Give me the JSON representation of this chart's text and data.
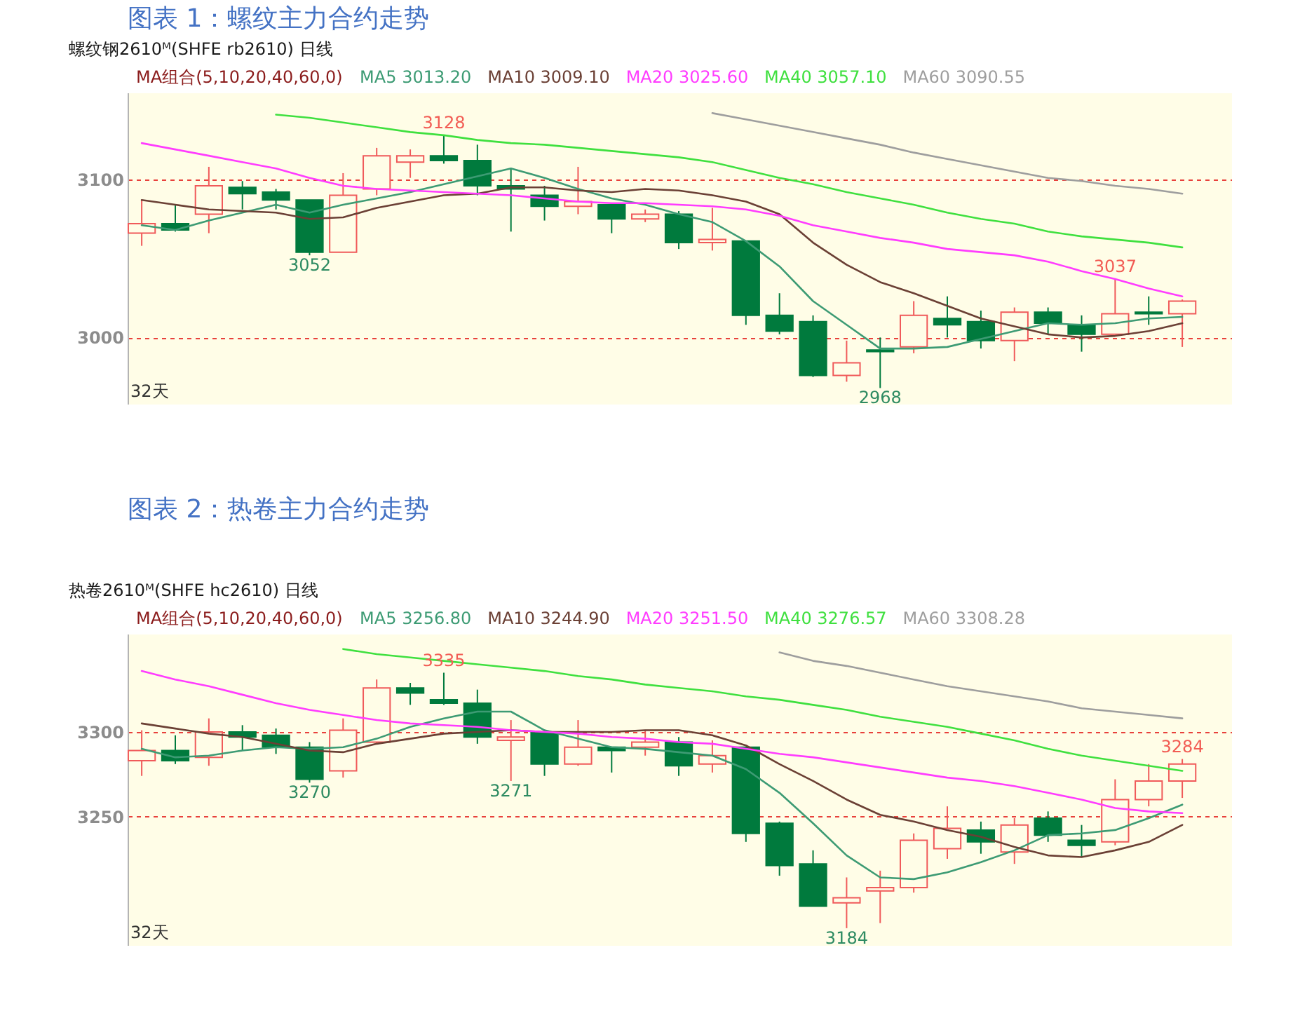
{
  "chart_data": [
    {
      "type": "candlestick",
      "title": "图表 1：螺纹主力合约走势",
      "subtitle": "螺纹钢2610ᴹ(SHFE rb2610) 日线",
      "legend_title": "MA组合(5,10,20,40,60,0)",
      "grid": "y",
      "tick_labels": "y",
      "categories": [
        null,
        null,
        null,
        null,
        null,
        null,
        null,
        null,
        null,
        null,
        null,
        null,
        null,
        null,
        null,
        null,
        null,
        null,
        null,
        null,
        null,
        null,
        null,
        null,
        null,
        null,
        null,
        null,
        null,
        null,
        null,
        null
      ],
      "ohlc": [
        [
          3066,
          3087,
          3058,
          3072
        ],
        [
          3072,
          3084,
          3067,
          3068
        ],
        [
          3078,
          3108,
          3066,
          3096
        ],
        [
          3095,
          3099,
          3081,
          3091
        ],
        [
          3092,
          3094,
          3081,
          3087
        ],
        [
          3087,
          3087,
          3052,
          3054
        ],
        [
          3054,
          3104,
          3054,
          3090
        ],
        [
          3094,
          3120,
          3090,
          3115
        ],
        [
          3111,
          3119,
          3101,
          3115
        ],
        [
          3115,
          3128,
          3110,
          3112
        ],
        [
          3112,
          3122,
          3090,
          3096
        ],
        [
          3096,
          3107,
          3067,
          3094
        ],
        [
          3090,
          3096,
          3074,
          3083
        ],
        [
          3083,
          3108,
          3078,
          3086
        ],
        [
          3084,
          3085,
          3066,
          3075
        ],
        [
          3075,
          3081,
          3073,
          3078
        ],
        [
          3078,
          3080,
          3056,
          3060
        ],
        [
          3060,
          3082,
          3055,
          3062
        ],
        [
          3061,
          3061,
          3008,
          3014
        ],
        [
          3014,
          3028,
          3002,
          3004
        ],
        [
          3010,
          3014,
          2975,
          2976
        ],
        [
          2976,
          2998,
          2972,
          2984
        ],
        [
          2992,
          3000,
          2968,
          2991
        ],
        [
          2994,
          3023,
          2990,
          3014
        ],
        [
          3012,
          3026,
          3000,
          3008
        ],
        [
          3010,
          3017,
          2993,
          2998
        ],
        [
          2998,
          3019,
          2985,
          3016
        ],
        [
          3016,
          3019,
          3002,
          3009
        ],
        [
          3008,
          3014,
          2991,
          3002
        ],
        [
          3002,
          3037,
          3002,
          3015
        ],
        [
          3016,
          3026,
          3008,
          3015
        ],
        [
          3015,
          3024,
          2994,
          3023
        ]
      ],
      "colors": [
        "#f05a5a",
        "#007a3d",
        "#f05a5a",
        "#007a3d",
        "#007a3d",
        "#007a3d",
        "#f05a5a",
        "#f05a5a",
        "#f05a5a",
        "#007a3d",
        "#007a3d",
        "#007a3d",
        "#007a3d",
        "#f05a5a",
        "#007a3d",
        "#f05a5a",
        "#007a3d",
        "#f05a5a",
        "#007a3d",
        "#007a3d",
        "#007a3d",
        "#f05a5a",
        "#007a3d",
        "#f05a5a",
        "#007a3d",
        "#007a3d",
        "#f05a5a",
        "#007a3d",
        "#007a3d",
        "#f05a5a",
        "#007a3d",
        "#f05a5a"
      ],
      "series": [
        {
          "name": "MA5 3013.20",
          "type": "line",
          "color": "#3d9b74",
          "values": [
            3071,
            3068,
            3074,
            3079,
            3084,
            3079,
            3084,
            3088,
            3092,
            3097,
            3102,
            3107,
            3101,
            3094,
            3088,
            3084,
            3078,
            3073,
            3061,
            3045,
            3023,
            3008,
            2993,
            2993,
            2994,
            2999,
            3004,
            3009,
            3008,
            3009,
            3012,
            3013
          ]
        },
        {
          "name": "MA10 3009.10",
          "type": "line",
          "color": "#6b4035",
          "values": [
            3087,
            3084,
            3081,
            3080,
            3079,
            3075,
            3076,
            3082,
            3086,
            3090,
            3091,
            3095,
            3095,
            3093,
            3092,
            3094,
            3093,
            3090,
            3086,
            3078,
            3060,
            3046,
            3035,
            3028,
            3020,
            3012,
            3007,
            3002,
            3000,
            3001,
            3004,
            3009
          ]
        },
        {
          "name": "MA20 3025.60",
          "type": "line",
          "color": "#ff3cff",
          "values": [
            3123,
            3119,
            3115,
            3111,
            3107,
            3101,
            3096,
            3094,
            3093,
            3092,
            3091,
            3090,
            3088,
            3086,
            3085,
            3085,
            3084,
            3083,
            3081,
            3077,
            3071,
            3067,
            3063,
            3060,
            3056,
            3054,
            3052,
            3048,
            3042,
            3037,
            3031,
            3026
          ]
        },
        {
          "name": "MA40 3057.10",
          "type": "line",
          "color": "#3fe03f",
          "values": [
            null,
            null,
            null,
            null,
            3141,
            3139,
            3136,
            3133,
            3130,
            3128,
            3125,
            3123,
            3122,
            3120,
            3118,
            3116,
            3114,
            3111,
            3106,
            3101,
            3097,
            3092,
            3088,
            3084,
            3079,
            3075,
            3072,
            3067,
            3064,
            3062,
            3060,
            3057
          ]
        },
        {
          "name": "MA60 3090.55",
          "type": "line",
          "color": "#9e9e9e",
          "values": [
            null,
            null,
            null,
            null,
            null,
            null,
            null,
            null,
            null,
            null,
            null,
            null,
            null,
            null,
            null,
            null,
            null,
            3142,
            3138,
            3134,
            3130,
            3126,
            3122,
            3117,
            3113,
            3109,
            3105,
            3101,
            3099,
            3096,
            3094,
            3091
          ]
        }
      ],
      "ylim": [
        2958,
        3155
      ],
      "yticks": [
        3000,
        3100
      ],
      "annotations": [
        "32天",
        {
          "text": "3128",
          "y": 3128
        },
        {
          "text": "3052",
          "y": 3052
        },
        {
          "text": "2968",
          "y": 2968
        },
        {
          "text": "3037",
          "y": 3037
        }
      ]
    },
    {
      "type": "candlestick",
      "title": "图表 2：热卷主力合约走势",
      "subtitle": "热卷2610ᴹ(SHFE hc2610) 日线",
      "legend_title": "MA组合(5,10,20,40,60,0)",
      "grid": "y",
      "tick_labels": "y",
      "categories": [
        null,
        null,
        null,
        null,
        null,
        null,
        null,
        null,
        null,
        null,
        null,
        null,
        null,
        null,
        null,
        null,
        null,
        null,
        null,
        null,
        null,
        null,
        null,
        null,
        null,
        null,
        null,
        null,
        null,
        null,
        null,
        null
      ],
      "ohlc": [
        [
          3283,
          3301,
          3274,
          3289
        ],
        [
          3289,
          3298,
          3281,
          3283
        ],
        [
          3285,
          3308,
          3280,
          3300
        ],
        [
          3300,
          3304,
          3289,
          3297
        ],
        [
          3298,
          3302,
          3287,
          3291
        ],
        [
          3291,
          3294,
          3270,
          3272
        ],
        [
          3277,
          3308,
          3273,
          3301
        ],
        [
          3294,
          3331,
          3293,
          3326
        ],
        [
          3326,
          3329,
          3316,
          3323
        ],
        [
          3319,
          3335,
          3316,
          3317
        ],
        [
          3317,
          3325,
          3293,
          3297
        ],
        [
          3295,
          3307,
          3271,
          3297
        ],
        [
          3300,
          3301,
          3274,
          3281
        ],
        [
          3281,
          3307,
          3280,
          3291
        ],
        [
          3291,
          3291,
          3276,
          3289
        ],
        [
          3291,
          3301,
          3286,
          3294
        ],
        [
          3294,
          3297,
          3274,
          3280
        ],
        [
          3281,
          3295,
          3276,
          3286
        ],
        [
          3291,
          3291,
          3235,
          3240
        ],
        [
          3246,
          3247,
          3215,
          3221
        ],
        [
          3222,
          3230,
          3197,
          3197
        ],
        [
          3199,
          3214,
          3184,
          3202
        ],
        [
          3206,
          3218,
          3187,
          3208
        ],
        [
          3208,
          3240,
          3205,
          3236
        ],
        [
          3231,
          3256,
          3225,
          3243
        ],
        [
          3242,
          3247,
          3228,
          3235
        ],
        [
          3229,
          3249,
          3222,
          3245
        ],
        [
          3249,
          3253,
          3235,
          3239
        ],
        [
          3236,
          3245,
          3226,
          3233
        ],
        [
          3235,
          3272,
          3233,
          3260
        ],
        [
          3260,
          3281,
          3256,
          3271
        ],
        [
          3271,
          3284,
          3261,
          3281
        ]
      ],
      "colors": [
        "#f05a5a",
        "#007a3d",
        "#f05a5a",
        "#007a3d",
        "#007a3d",
        "#007a3d",
        "#f05a5a",
        "#f05a5a",
        "#007a3d",
        "#007a3d",
        "#007a3d",
        "#f05a5a",
        "#007a3d",
        "#f05a5a",
        "#007a3d",
        "#f05a5a",
        "#007a3d",
        "#f05a5a",
        "#007a3d",
        "#007a3d",
        "#007a3d",
        "#f05a5a",
        "#f05a5a",
        "#f05a5a",
        "#f05a5a",
        "#007a3d",
        "#f05a5a",
        "#007a3d",
        "#007a3d",
        "#f05a5a",
        "#f05a5a",
        "#f05a5a"
      ],
      "series": [
        {
          "name": "MA5 3256.80",
          "type": "line",
          "color": "#3d9b74",
          "values": [
            3290,
            3285,
            3286,
            3289,
            3291,
            3290,
            3291,
            3296,
            3303,
            3308,
            3312,
            3312,
            3301,
            3296,
            3291,
            3290,
            3288,
            3286,
            3278,
            3264,
            3246,
            3227,
            3214,
            3213,
            3217,
            3223,
            3230,
            3239,
            3240,
            3242,
            3249,
            3257
          ]
        },
        {
          "name": "MA10 3244.90",
          "type": "line",
          "color": "#6b4035",
          "values": [
            3305,
            3302,
            3299,
            3297,
            3293,
            3289,
            3288,
            3293,
            3296,
            3299,
            3300,
            3301,
            3300,
            3300,
            3300,
            3301,
            3301,
            3298,
            3292,
            3281,
            3271,
            3260,
            3251,
            3247,
            3242,
            3238,
            3232,
            3227,
            3226,
            3230,
            3235,
            3245
          ]
        },
        {
          "name": "MA20 3251.50",
          "type": "line",
          "color": "#ff3cff",
          "values": [
            3336,
            3331,
            3327,
            3322,
            3317,
            3313,
            3310,
            3307,
            3305,
            3304,
            3303,
            3301,
            3300,
            3299,
            3297,
            3296,
            3294,
            3293,
            3290,
            3287,
            3285,
            3282,
            3279,
            3276,
            3273,
            3271,
            3268,
            3264,
            3260,
            3255,
            3253,
            3252
          ]
        },
        {
          "name": "MA40 3276.57",
          "type": "line",
          "color": "#3fe03f",
          "values": [
            null,
            null,
            null,
            null,
            null,
            null,
            3349,
            3346,
            3344,
            3342,
            3340,
            3338,
            3336,
            3333,
            3331,
            3328,
            3326,
            3324,
            3321,
            3319,
            3316,
            3313,
            3309,
            3306,
            3303,
            3299,
            3295,
            3290,
            3286,
            3283,
            3280,
            3277
          ]
        },
        {
          "name": "MA60 3308.28",
          "type": "line",
          "color": "#9e9e9e",
          "values": [
            null,
            null,
            null,
            null,
            null,
            null,
            null,
            null,
            null,
            null,
            null,
            null,
            null,
            null,
            null,
            null,
            null,
            null,
            null,
            3347,
            3342,
            3339,
            3335,
            3331,
            3327,
            3324,
            3321,
            3318,
            3314,
            3312,
            3310,
            3308
          ]
        }
      ],
      "ylim": [
        3174,
        3358
      ],
      "yticks": [
        3250,
        3300
      ],
      "annotations": [
        "32天",
        {
          "text": "3335",
          "y": 3335
        },
        {
          "text": "3270",
          "y": 3270
        },
        {
          "text": "3271",
          "y": 3271
        },
        {
          "text": "3184",
          "y": 3184
        },
        {
          "text": "3284",
          "y": 3284
        }
      ]
    }
  ]
}
